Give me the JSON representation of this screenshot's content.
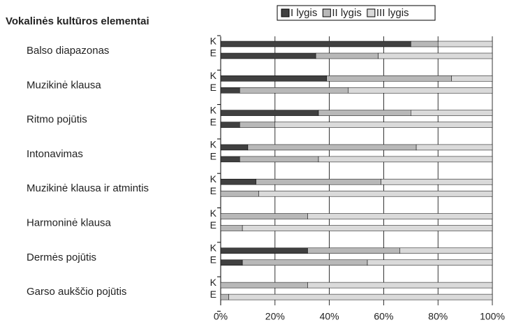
{
  "chart_data": {
    "type": "stacked-bar-horizontal",
    "title": "Vokalinės kultūros elementai",
    "categories": [
      "Balso diapazonas",
      "Muzikinė klausa",
      "Ritmo pojūtis",
      "Intonavimas",
      "Muzikinė klausa ir atmintis",
      "Harmoninė klausa",
      "Dermės pojūtis",
      "Garso aukščio pojūtis"
    ],
    "bar_labels": [
      "K",
      "E"
    ],
    "series": [
      {
        "name": "I lygis",
        "color": "#404040",
        "values": [
          [
            70,
            35
          ],
          [
            39,
            7
          ],
          [
            36,
            7
          ],
          [
            10,
            7
          ],
          [
            13,
            0
          ],
          [
            0,
            0
          ],
          [
            32,
            8
          ],
          [
            0,
            0
          ]
        ]
      },
      {
        "name": "II lygis",
        "color": "#b8b8b8",
        "values": [
          [
            10,
            23
          ],
          [
            46,
            40
          ],
          [
            34,
            13
          ],
          [
            62,
            29
          ],
          [
            46,
            14
          ],
          [
            32,
            8
          ],
          [
            34,
            46
          ],
          [
            32,
            3
          ]
        ]
      },
      {
        "name": "III lygis",
        "color": "#dadada",
        "values": [
          [
            20,
            42
          ],
          [
            15,
            53
          ],
          [
            30,
            80
          ],
          [
            28,
            64
          ],
          [
            41,
            86
          ],
          [
            68,
            92
          ],
          [
            34,
            46
          ],
          [
            68,
            97
          ]
        ]
      }
    ],
    "xlim": [
      0,
      100
    ],
    "xticks": [
      {
        "value": 0,
        "label": "0%"
      },
      {
        "value": 20,
        "label": "20%"
      },
      {
        "value": 40,
        "label": "40%"
      },
      {
        "value": 60,
        "label": "60%"
      },
      {
        "value": 80,
        "label": "80%"
      },
      {
        "value": 100,
        "label": "100%"
      }
    ],
    "grid": true
  }
}
